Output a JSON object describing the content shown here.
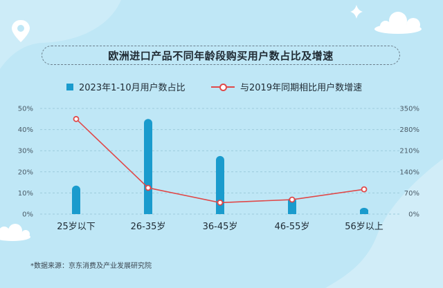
{
  "title": "欧洲进口产品不同年龄段购买用户数占比及增速",
  "source": "*数据来源：京东消费及产业发展研究院",
  "colors": {
    "background": "#bfe7f6",
    "bar": "#1a9bcd",
    "line": "#e04848",
    "grid": "#9ccbdc",
    "decor": "#ffffff"
  },
  "icons": [
    "location-pin-icon",
    "sparkle-icon",
    "cloud-icon"
  ],
  "chart_data": {
    "type": "bar",
    "categories": [
      "25岁以下",
      "26-35岁",
      "36-45岁",
      "46-55岁",
      "56岁以上"
    ],
    "series": [
      {
        "name": "2023年1-10月用户数占比",
        "type": "bar",
        "axis": "left",
        "values": [
          13.5,
          45,
          27.5,
          8,
          3
        ]
      },
      {
        "name": "与2019年同期相比用户数增速",
        "type": "line",
        "axis": "right",
        "values": [
          315,
          87,
          38,
          48,
          82
        ]
      }
    ],
    "y_left": {
      "min": 0,
      "max": 50,
      "ticks": [
        "0%",
        "10%",
        "20%",
        "30%",
        "40%",
        "50%"
      ]
    },
    "y_right": {
      "min": 0,
      "max": 350,
      "ticks": [
        "0%",
        "70%",
        "140%",
        "210%",
        "280%",
        "350%"
      ]
    },
    "grid": true,
    "legend": "top"
  }
}
